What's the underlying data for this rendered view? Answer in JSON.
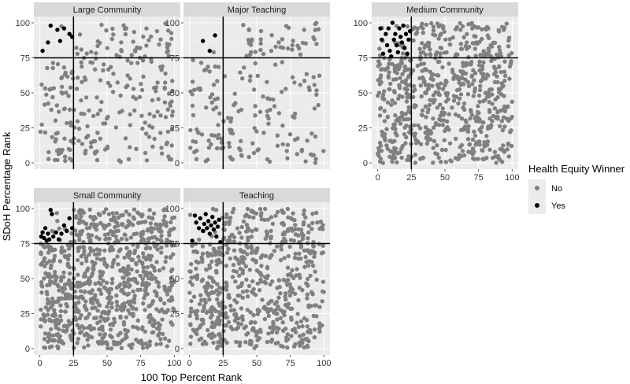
{
  "chart_data": {
    "type": "scatter",
    "xlabel": "100 Top Percent Rank",
    "ylabel": "SDoH Percentage Rank",
    "xlim": [
      0,
      100
    ],
    "ylim": [
      0,
      100
    ],
    "x_ticks": [
      0,
      25,
      50,
      75,
      100
    ],
    "y_ticks": [
      0,
      25,
      50,
      75,
      100
    ],
    "reference_lines": {
      "vertical_x": 25,
      "horizontal_y": 75
    },
    "grid": true,
    "legend": {
      "title": "Health Equity Winner",
      "position": "right",
      "entries": [
        {
          "label": "No",
          "color": "#808080"
        },
        {
          "label": "Yes",
          "color": "#000000"
        }
      ]
    },
    "facets": [
      {
        "title": "Large Community",
        "no_count": 260,
        "yes_points": [
          [
            2,
            80
          ],
          [
            6,
            86
          ],
          [
            8,
            98
          ],
          [
            13,
            95
          ],
          [
            15,
            87
          ],
          [
            18,
            96
          ],
          [
            22,
            92
          ],
          [
            24,
            90
          ]
        ]
      },
      {
        "title": "Major Teaching",
        "no_count": 200,
        "yes_points": [
          [
            10,
            87
          ],
          [
            15,
            80
          ],
          [
            19,
            91
          ]
        ]
      },
      {
        "title": "Medium Community",
        "no_count": 700,
        "yes_points": [
          [
            2,
            96
          ],
          [
            3,
            88
          ],
          [
            4,
            78
          ],
          [
            6,
            92
          ],
          [
            7,
            84
          ],
          [
            8,
            96
          ],
          [
            9,
            80
          ],
          [
            10,
            76
          ],
          [
            11,
            100
          ],
          [
            12,
            88
          ],
          [
            13,
            92
          ],
          [
            14,
            84
          ],
          [
            15,
            79
          ],
          [
            16,
            96
          ],
          [
            17,
            90
          ],
          [
            18,
            86
          ],
          [
            19,
            98
          ],
          [
            20,
            82
          ],
          [
            21,
            92
          ],
          [
            22,
            78
          ],
          [
            23,
            88
          ],
          [
            24,
            94
          ]
        ]
      },
      {
        "title": "Small Community",
        "no_count": 850,
        "yes_points": [
          [
            1,
            80
          ],
          [
            2,
            83
          ],
          [
            3,
            79
          ],
          [
            4,
            86
          ],
          [
            5,
            77
          ],
          [
            6,
            82
          ],
          [
            7,
            78
          ],
          [
            8,
            99
          ],
          [
            9,
            96
          ],
          [
            10,
            80
          ],
          [
            12,
            83
          ],
          [
            14,
            78
          ],
          [
            16,
            82
          ],
          [
            18,
            88
          ],
          [
            20,
            84
          ],
          [
            22,
            93
          ],
          [
            24,
            86
          ]
        ]
      },
      {
        "title": "Teaching",
        "no_count": 650,
        "yes_points": [
          [
            2,
            77
          ],
          [
            4,
            95
          ],
          [
            5,
            90
          ],
          [
            7,
            86
          ],
          [
            8,
            93
          ],
          [
            10,
            84
          ],
          [
            11,
            89
          ],
          [
            12,
            96
          ],
          [
            13,
            86
          ],
          [
            14,
            91
          ],
          [
            15,
            82
          ],
          [
            16,
            88
          ],
          [
            17,
            94
          ],
          [
            18,
            85
          ],
          [
            19,
            90
          ],
          [
            20,
            80
          ],
          [
            21,
            87
          ],
          [
            22,
            92
          ],
          [
            23,
            76
          ]
        ]
      }
    ]
  }
}
